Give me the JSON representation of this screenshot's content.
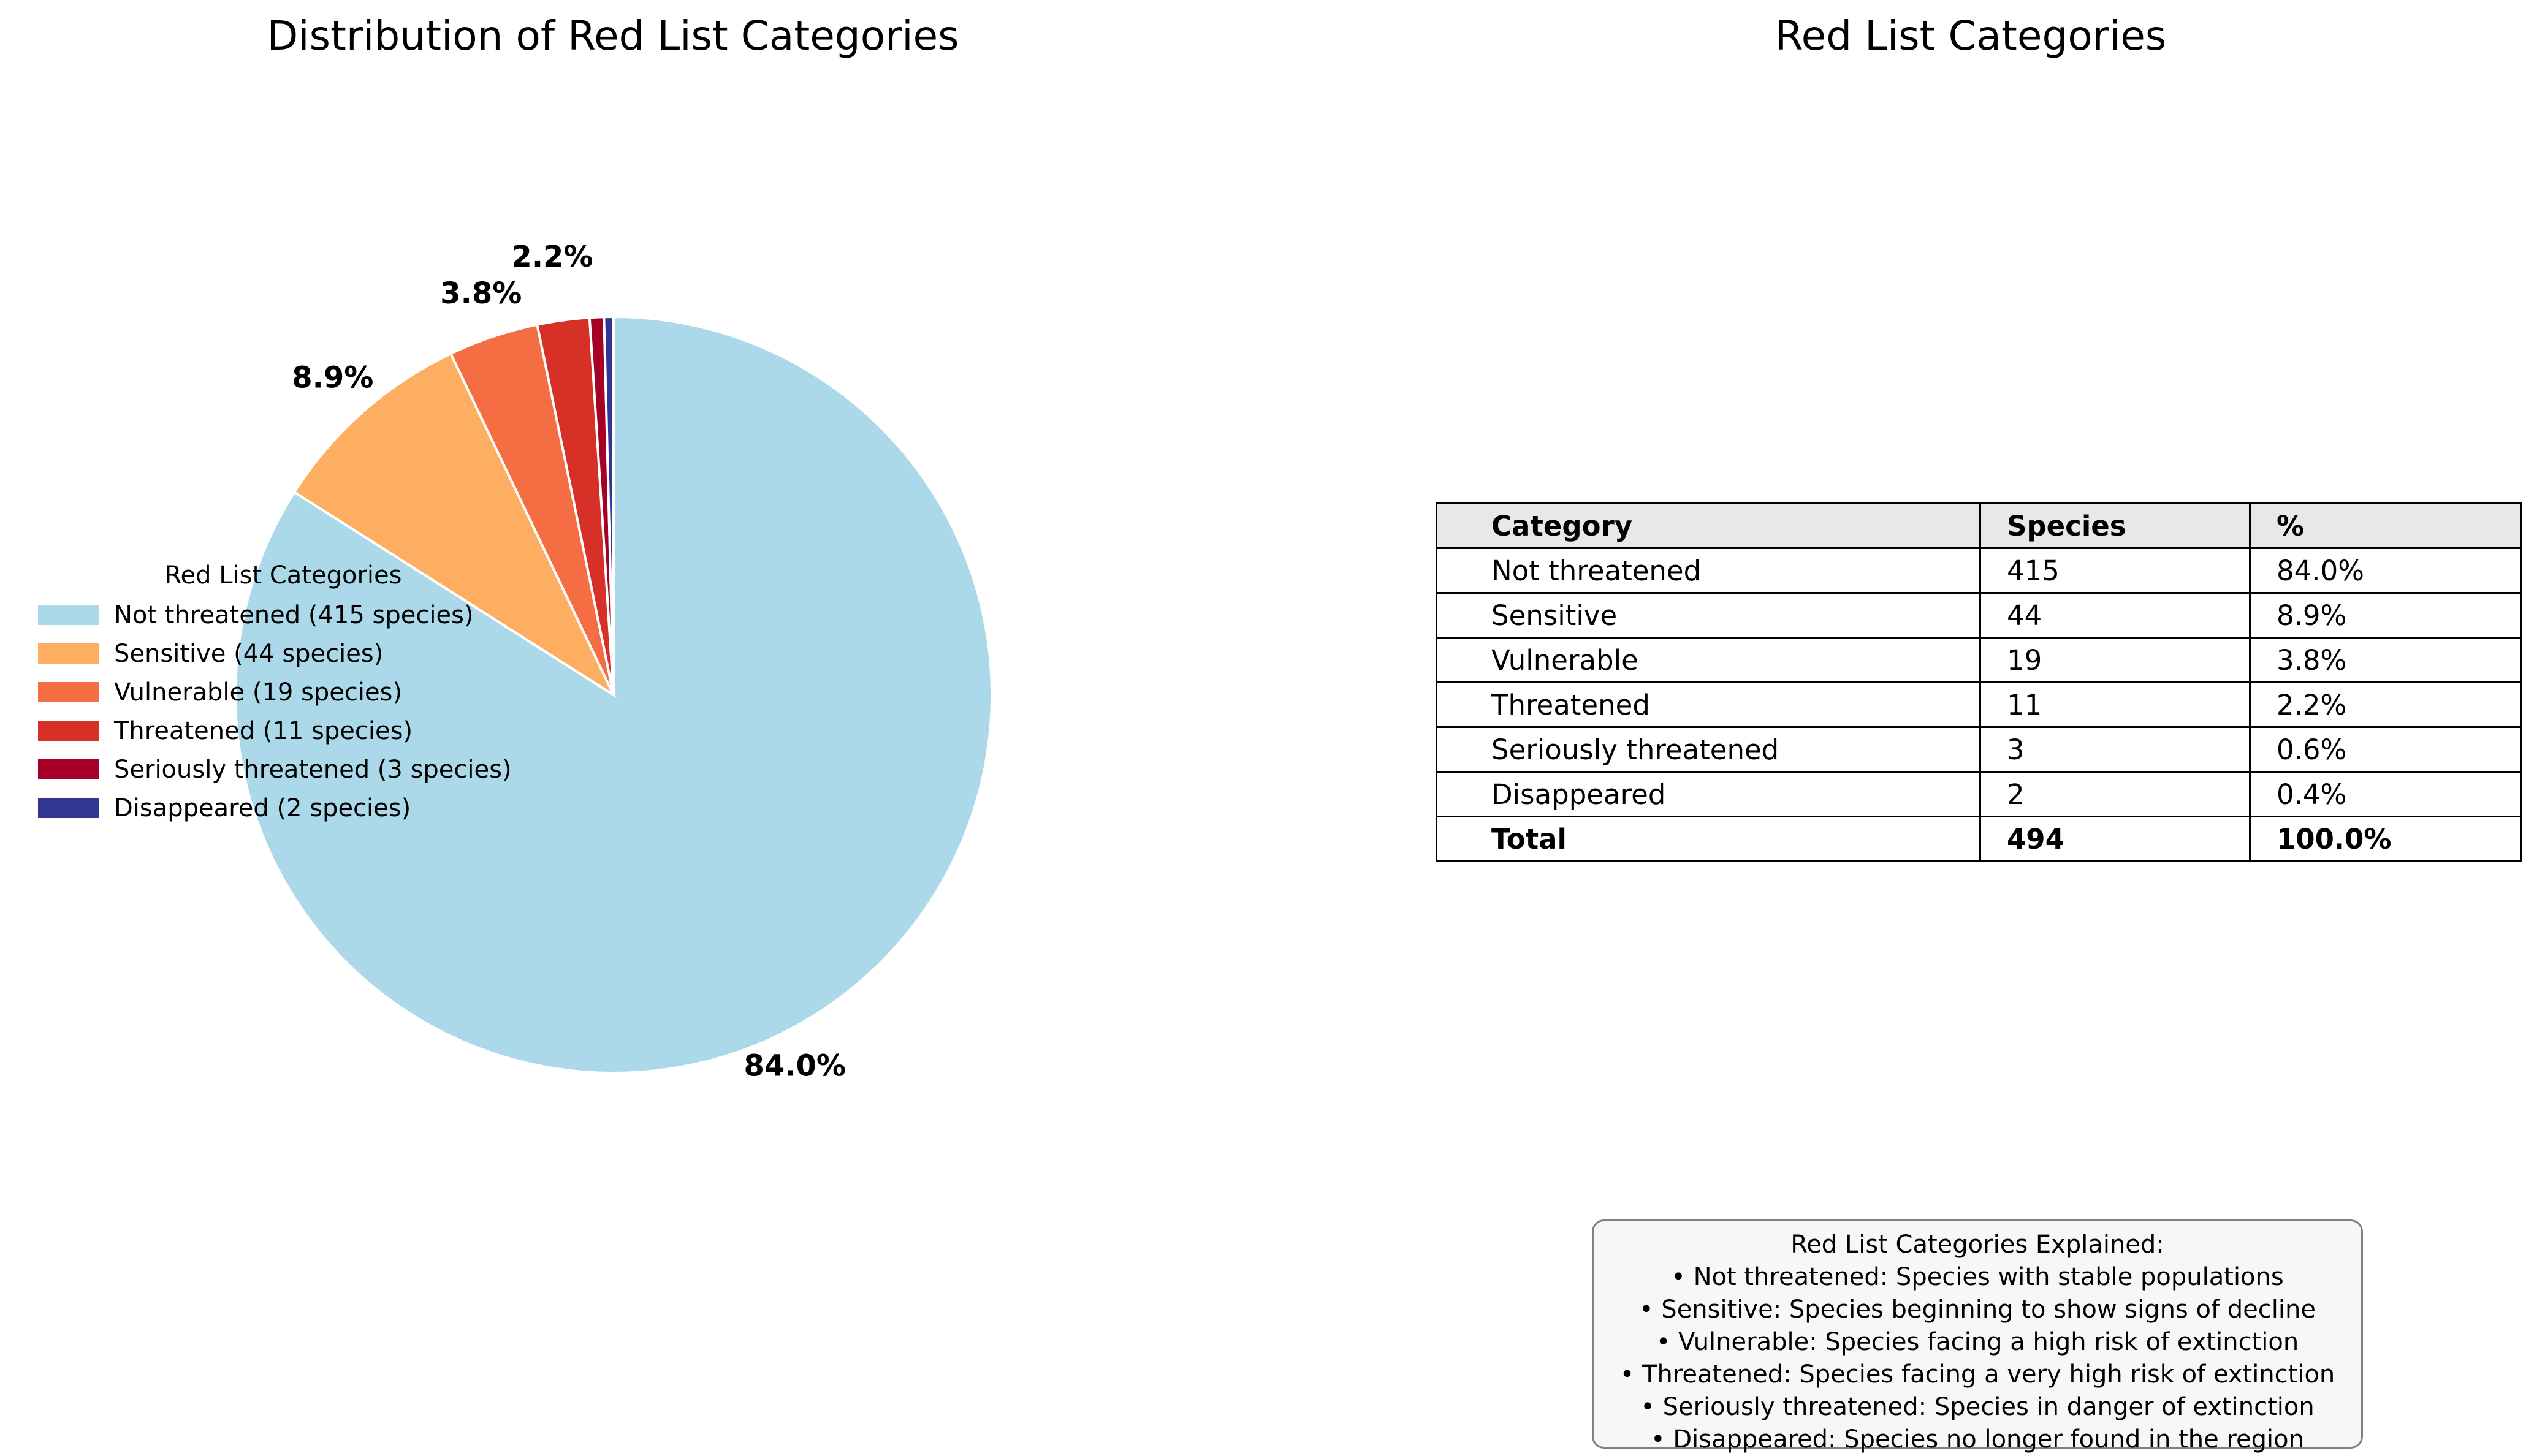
{
  "chart_data": [
    {
      "type": "pie",
      "title": "Distribution of Red List Categories",
      "start_angle_deg": 90,
      "direction": "clockwise",
      "legend": {
        "title": "Red List Categories",
        "placement": "center-left"
      },
      "slices": [
        {
          "label": "Not threatened",
          "value": 415,
          "percent": "84.0%",
          "legend": "Not threatened (415 species)",
          "color": "#abd9e9"
        },
        {
          "label": "Sensitive",
          "value": 44,
          "percent": "8.9%",
          "legend": "Sensitive (44 species)",
          "color": "#fdae61"
        },
        {
          "label": "Vulnerable",
          "value": 19,
          "percent": "3.8%",
          "legend": "Vulnerable (19 species)",
          "color": "#f46d43"
        },
        {
          "label": "Threatened",
          "value": 11,
          "percent": "2.2%",
          "legend": "Threatened (11 species)",
          "color": "#d73027"
        },
        {
          "label": "Seriously threatened",
          "value": 3,
          "percent": "",
          "legend": "Seriously threatened (3 species)",
          "color": "#a50026"
        },
        {
          "label": "Disappeared",
          "value": 2,
          "percent": "",
          "legend": "Disappeared (2 species)",
          "color": "#313695"
        }
      ]
    },
    {
      "type": "table",
      "title": "Red List Categories",
      "columns": [
        "Category",
        "Species",
        "%"
      ],
      "rows": [
        [
          "Not threatened",
          "415",
          "84.0%"
        ],
        [
          "Sensitive",
          "44",
          "8.9%"
        ],
        [
          "Vulnerable",
          "19",
          "3.8%"
        ],
        [
          "Threatened",
          "11",
          "2.2%"
        ],
        [
          "Seriously threatened",
          "3",
          "0.6%"
        ],
        [
          "Disappeared",
          "2",
          "0.4%"
        ]
      ],
      "total": [
        "Total",
        "494",
        "100.0%"
      ]
    }
  ],
  "explanation": {
    "title": "Red List Categories Explained:",
    "lines": [
      "• Not threatened: Species with stable populations",
      "• Sensitive: Species beginning to show signs of decline",
      "• Vulnerable: Species facing a high risk of extinction",
      "• Threatened: Species facing a very high risk of extinction",
      "• Seriously threatened: Species in danger of extinction",
      "• Disappeared: Species no longer found in the region"
    ]
  }
}
